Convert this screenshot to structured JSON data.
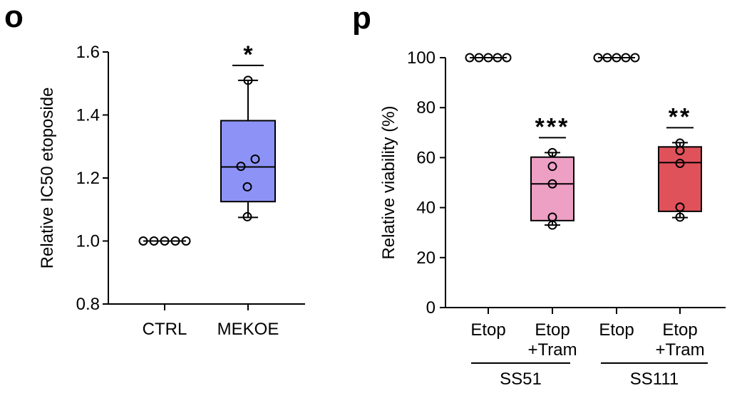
{
  "panels": {
    "o": {
      "letter": "o"
    },
    "p": {
      "letter": "p"
    }
  },
  "chart_data": [
    {
      "type": "box",
      "panel": "o",
      "title": "",
      "xlabel": "",
      "ylabel": "Relative IC50 etoposide",
      "ylim": [
        0.8,
        1.6
      ],
      "yticks": [
        0.8,
        1.0,
        1.2,
        1.4,
        1.6
      ],
      "ytick_labels": [
        "0.8",
        "1.0",
        "1.2",
        "1.4",
        "1.6"
      ],
      "categories": [
        "CTRL",
        "MEKOE"
      ],
      "groups": [
        {
          "name": "CTRL",
          "color": "#ffffff",
          "box": null,
          "points": [
            1.0,
            1.0,
            1.0,
            1.0,
            1.0
          ],
          "significance": ""
        },
        {
          "name": "MEKOE",
          "color": "#8d93f6",
          "box": {
            "min": 1.075,
            "q1": 1.125,
            "median": 1.235,
            "q3": 1.382,
            "max": 1.51
          },
          "points": [
            1.51,
            1.26,
            1.237,
            1.172,
            1.077
          ],
          "significance": "*"
        }
      ]
    },
    {
      "type": "box",
      "panel": "p",
      "title": "",
      "xlabel": "",
      "ylabel": "Relative viability (%)",
      "ylim": [
        0,
        100
      ],
      "yticks": [
        0,
        20,
        40,
        60,
        80,
        100
      ],
      "ytick_labels": [
        "0",
        "20",
        "40",
        "60",
        "80",
        "100"
      ],
      "categories": [
        "Etop",
        "Etop\n+Tram",
        "Etop",
        "Etop\n+Tram"
      ],
      "group_labels": [
        "SS51",
        "SS111"
      ],
      "groups": [
        {
          "name": "Etop",
          "cell_line": "SS51",
          "label_line1": "Etop",
          "label_line2": "",
          "color": "#ffffff",
          "box": null,
          "points": [
            100,
            100,
            100,
            100,
            100
          ],
          "significance": ""
        },
        {
          "name": "Etop +Tram",
          "cell_line": "SS51",
          "label_line1": "Etop",
          "label_line2": "+Tram",
          "color": "#ee9fc4",
          "box": {
            "min": 33,
            "q1": 34.8,
            "median": 49.5,
            "q3": 60.2,
            "max": 62
          },
          "points": [
            62,
            56.5,
            49.5,
            36.2,
            33
          ],
          "significance": "***"
        },
        {
          "name": "Etop",
          "cell_line": "SS111",
          "label_line1": "Etop",
          "label_line2": "",
          "color": "#ffffff",
          "box": null,
          "points": [
            100,
            100,
            100,
            100,
            100
          ],
          "significance": ""
        },
        {
          "name": "Etop +Tram",
          "cell_line": "SS111",
          "label_line1": "Etop",
          "label_line2": "+Tram",
          "color": "#e0525a",
          "box": {
            "min": 36,
            "q1": 38.5,
            "median": 58,
            "q3": 64.3,
            "max": 66
          },
          "points": [
            65.8,
            62.8,
            57.7,
            40.2,
            36.2
          ],
          "significance": "**"
        }
      ]
    }
  ]
}
